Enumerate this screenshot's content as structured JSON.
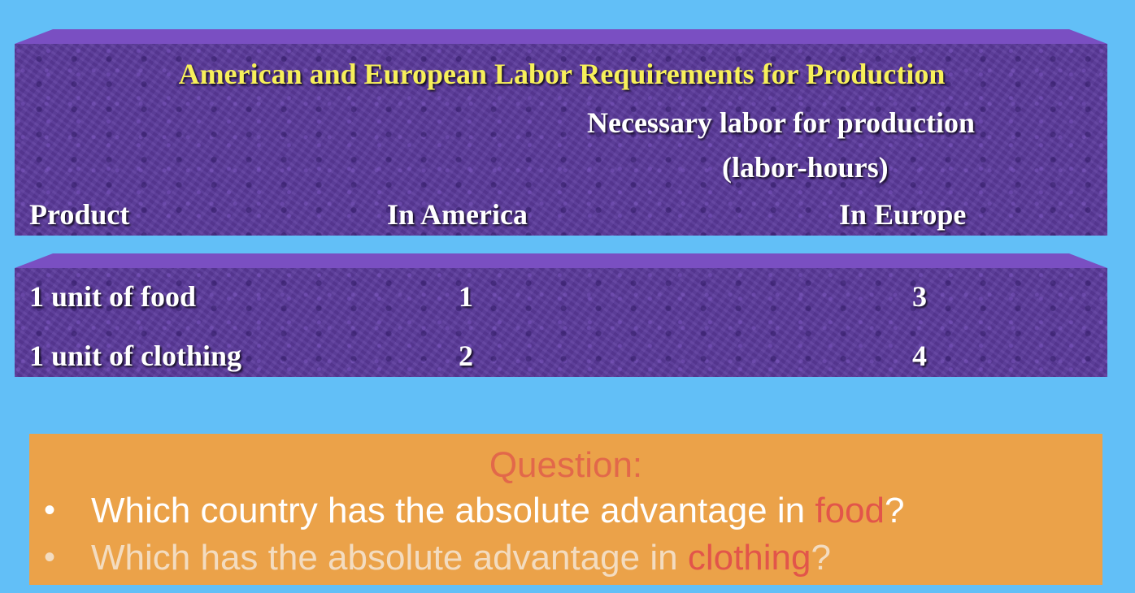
{
  "table": {
    "title": "American and European Labor Requirements for Production",
    "group_header_line1": "Necessary labor for production",
    "group_header_line2": "(labor-hours)",
    "columns": [
      "Product",
      "In America",
      "In Europe"
    ],
    "rows": [
      {
        "product": "1 unit of food",
        "america": "1",
        "europe": "3"
      },
      {
        "product": "1 unit of clothing",
        "america": "2",
        "europe": "4"
      }
    ]
  },
  "question": {
    "heading": "Question:",
    "bullet_glyph": "•",
    "items": [
      {
        "before": "Which country has the absolute advantage in ",
        "highlight": "food",
        "after": "?"
      },
      {
        "before": "Which has the absolute advantage in ",
        "highlight": "clothing",
        "after": "?"
      }
    ]
  },
  "colors": {
    "background": "#62bff7",
    "panel_purple": "#5b3a9c",
    "title_yellow": "#f7f05a",
    "question_box": "#eba249",
    "highlight_red": "#e2554a"
  }
}
